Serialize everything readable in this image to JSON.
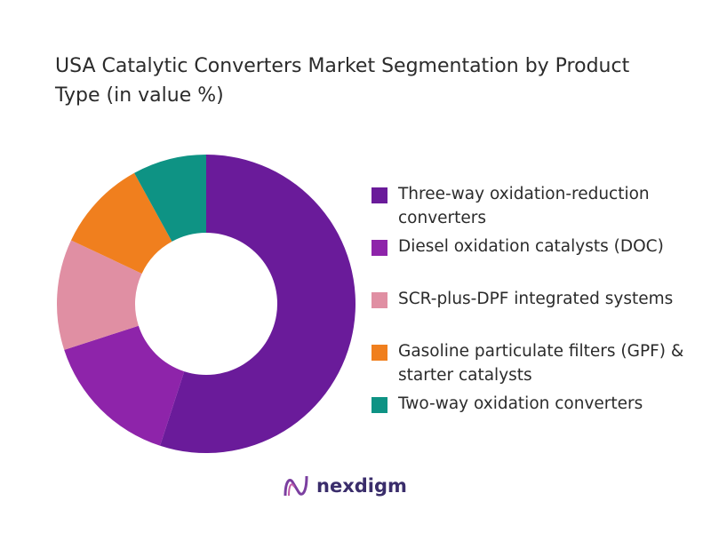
{
  "chart_data": {
    "type": "donut",
    "title": "USA Catalytic Converters Market Segmentation by Product Type (in value %)",
    "categories": [
      "Three-way oxidation-reduction converters",
      "Diesel oxidation catalysts (DOC)",
      "SCR-plus-DPF integrated systems",
      "Gasoline particulate filters (GPF) & starter catalysts",
      "Two-way oxidation converters"
    ],
    "values": [
      55,
      15,
      12,
      10,
      8
    ],
    "colors": [
      "#6a1b9a",
      "#8e24aa",
      "#e08fa3",
      "#f07f1e",
      "#0e9384"
    ]
  },
  "brand": "nexdigm"
}
